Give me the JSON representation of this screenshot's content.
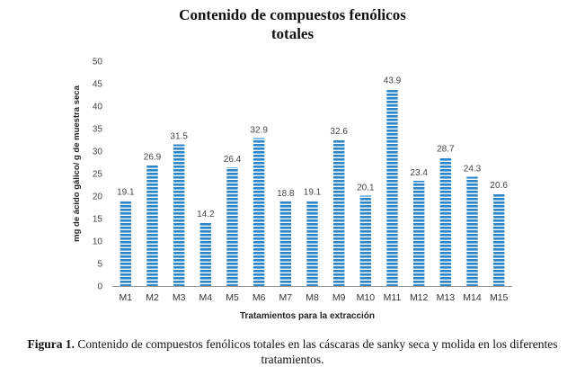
{
  "chart_data": {
    "type": "bar",
    "title_line1": "Contenido de compuestos fenólicos",
    "title_line2": "totales",
    "xlabel": "Tratamientos para la extracción",
    "ylabel": "mg de ácido gálico/ g de muestra seca",
    "ylim": [
      0,
      50
    ],
    "yticks": [
      0,
      5,
      10,
      15,
      20,
      25,
      30,
      35,
      40,
      45,
      50
    ],
    "categories": [
      "M1",
      "M2",
      "M3",
      "M4",
      "M5",
      "M6",
      "M7",
      "M8",
      "M9",
      "M10",
      "M11",
      "M12",
      "M13",
      "M14",
      "M15"
    ],
    "values": [
      19.1,
      26.9,
      31.5,
      14.2,
      26.4,
      32.9,
      18.8,
      19.1,
      32.6,
      20.1,
      43.9,
      23.4,
      28.7,
      24.3,
      20.6
    ],
    "value_labels": [
      "19.1",
      "26.9",
      "31.5",
      "14.2",
      "26.4",
      "32.9",
      "18.8",
      "19.1",
      "32.6",
      "20.1",
      "43.9",
      "23.4",
      "28.7",
      "24.3",
      "20.6"
    ],
    "bar_color": "#2e86c9",
    "grid": false,
    "legend": "none"
  },
  "caption": {
    "label": "Figura 1.",
    "text": "Contenido de compuestos fenólicos totales en las cáscaras de sanky seca y molida en los diferentes tratamientos."
  }
}
